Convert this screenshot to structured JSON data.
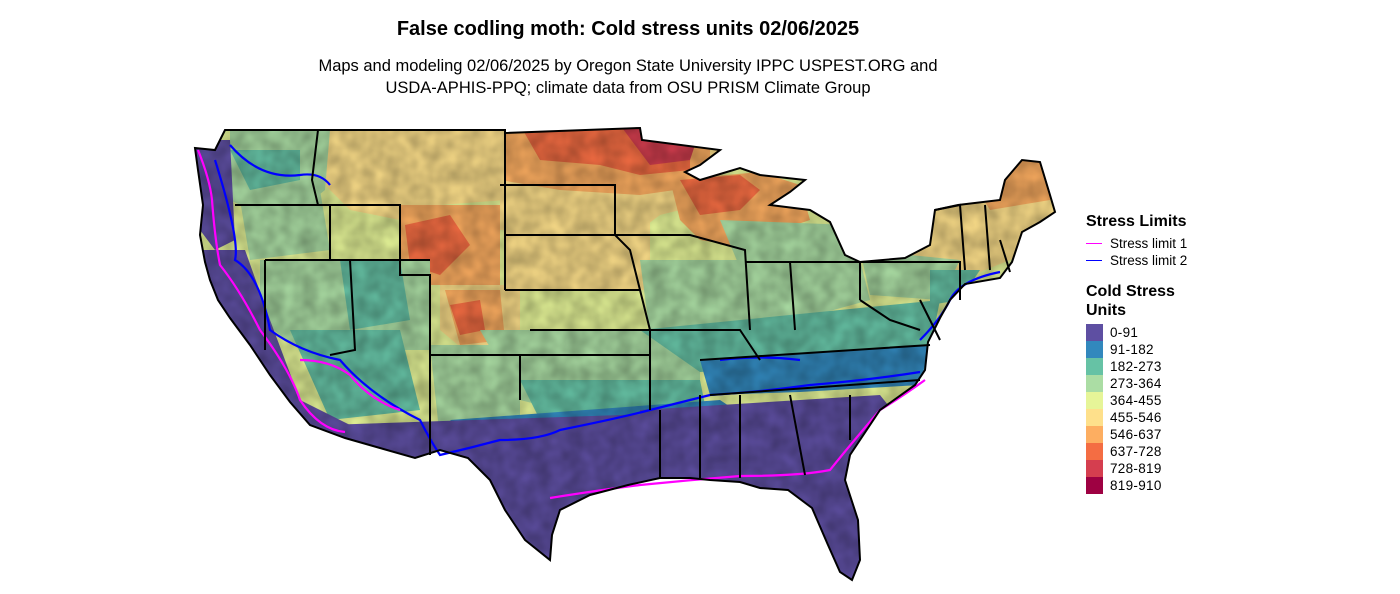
{
  "title": "False codling moth: Cold stress units 02/06/2025",
  "subtitle_line1": "Maps and modeling 02/06/2025 by Oregon State University IPPC USPEST.ORG and",
  "subtitle_line2": "USDA-APHIS-PPQ; climate data from OSU PRISM Climate Group",
  "legend": {
    "stress_title": "Stress Limits",
    "stress_limits": [
      {
        "label": "Stress limit 1",
        "color": "#ff00ff"
      },
      {
        "label": "Stress limit 2",
        "color": "#0000ff"
      }
    ],
    "csu_title_line1": "Cold Stress",
    "csu_title_line2": "Units",
    "classes": [
      {
        "label": "0-91",
        "color": "#5e4fa2"
      },
      {
        "label": "91-182",
        "color": "#3288bd"
      },
      {
        "label": "182-273",
        "color": "#66c2a5"
      },
      {
        "label": "273-364",
        "color": "#abdda4"
      },
      {
        "label": "364-455",
        "color": "#e6f598"
      },
      {
        "label": "455-546",
        "color": "#fee08b"
      },
      {
        "label": "546-637",
        "color": "#fdae61"
      },
      {
        "label": "637-728",
        "color": "#f46d43"
      },
      {
        "label": "728-819",
        "color": "#d53e4f"
      },
      {
        "label": "819-910",
        "color": "#9e0142"
      }
    ]
  }
}
